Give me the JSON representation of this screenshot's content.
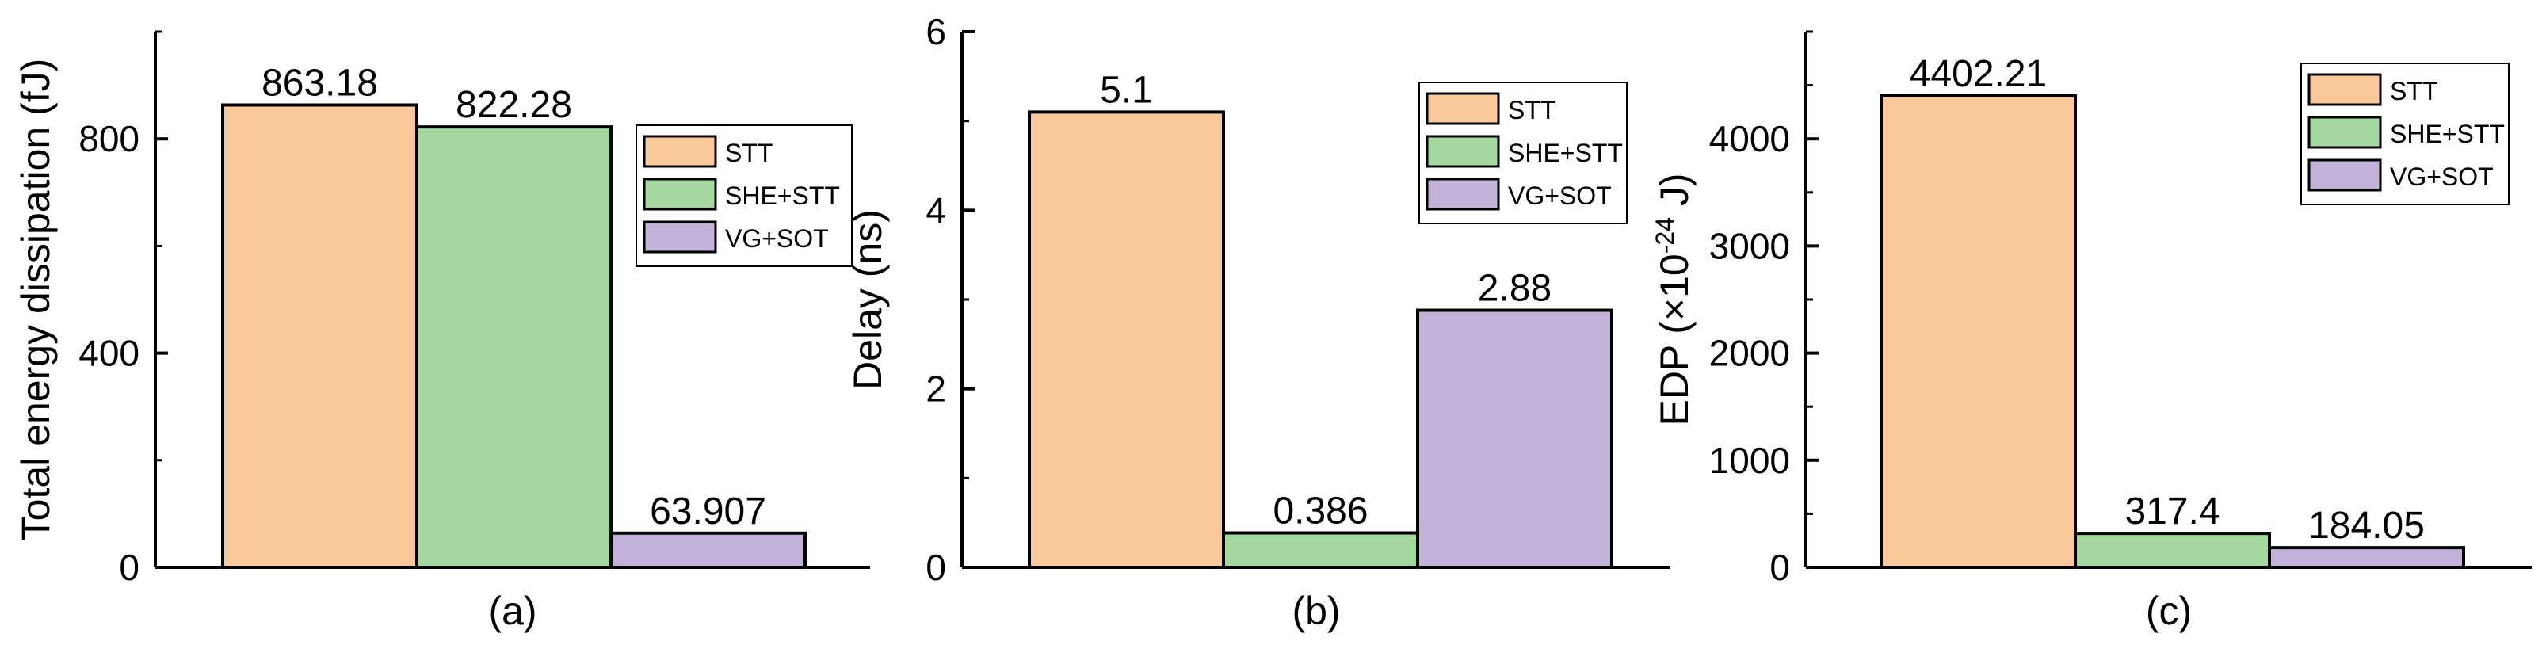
{
  "chart_data": [
    {
      "type": "bar",
      "panel_label": "(a)",
      "ylabel": "Total energy dissipation (fJ)",
      "ylim": [
        0,
        1000
      ],
      "yticks": [
        0,
        400,
        800
      ],
      "minor_step": 200,
      "series": [
        {
          "name": "STT",
          "value": 863.18,
          "label": "863.18",
          "color": "#f9c89b"
        },
        {
          "name": "SHE+STT",
          "value": 822.28,
          "label": "822.28",
          "color": "#a3d89f"
        },
        {
          "name": "VG+SOT",
          "value": 63.907,
          "label": "63.907",
          "color": "#c2b2d8"
        }
      ],
      "legend": "top-right",
      "grid": false
    },
    {
      "type": "bar",
      "panel_label": "(b)",
      "ylabel": "Delay (ns)",
      "ylim": [
        0,
        6
      ],
      "yticks": [
        0,
        2,
        4,
        6
      ],
      "minor_step": 1,
      "series": [
        {
          "name": "STT",
          "value": 5.1,
          "label": "5.1",
          "color": "#f9c89b"
        },
        {
          "name": "SHE+STT",
          "value": 0.386,
          "label": "0.386",
          "color": "#a3d89f"
        },
        {
          "name": "VG+SOT",
          "value": 2.88,
          "label": "2.88",
          "color": "#c2b2d8"
        }
      ],
      "legend": "top-right",
      "grid": false
    },
    {
      "type": "bar",
      "panel_label": "(c)",
      "ylabel": {
        "before": "EDP (×10",
        "sup": "-24",
        "after": " J)"
      },
      "ylim": [
        0,
        5000
      ],
      "yticks": [
        0,
        1000,
        2000,
        3000,
        4000
      ],
      "minor_step": 500,
      "series": [
        {
          "name": "STT",
          "value": 4402.21,
          "label": "4402.21",
          "color": "#f9c89b"
        },
        {
          "name": "SHE+STT",
          "value": 317.4,
          "label": "317.4",
          "color": "#a3d89f"
        },
        {
          "name": "VG+SOT",
          "value": 184.05,
          "label": "184.05",
          "color": "#c2b2d8"
        }
      ],
      "legend": "top-right",
      "grid": false
    }
  ]
}
